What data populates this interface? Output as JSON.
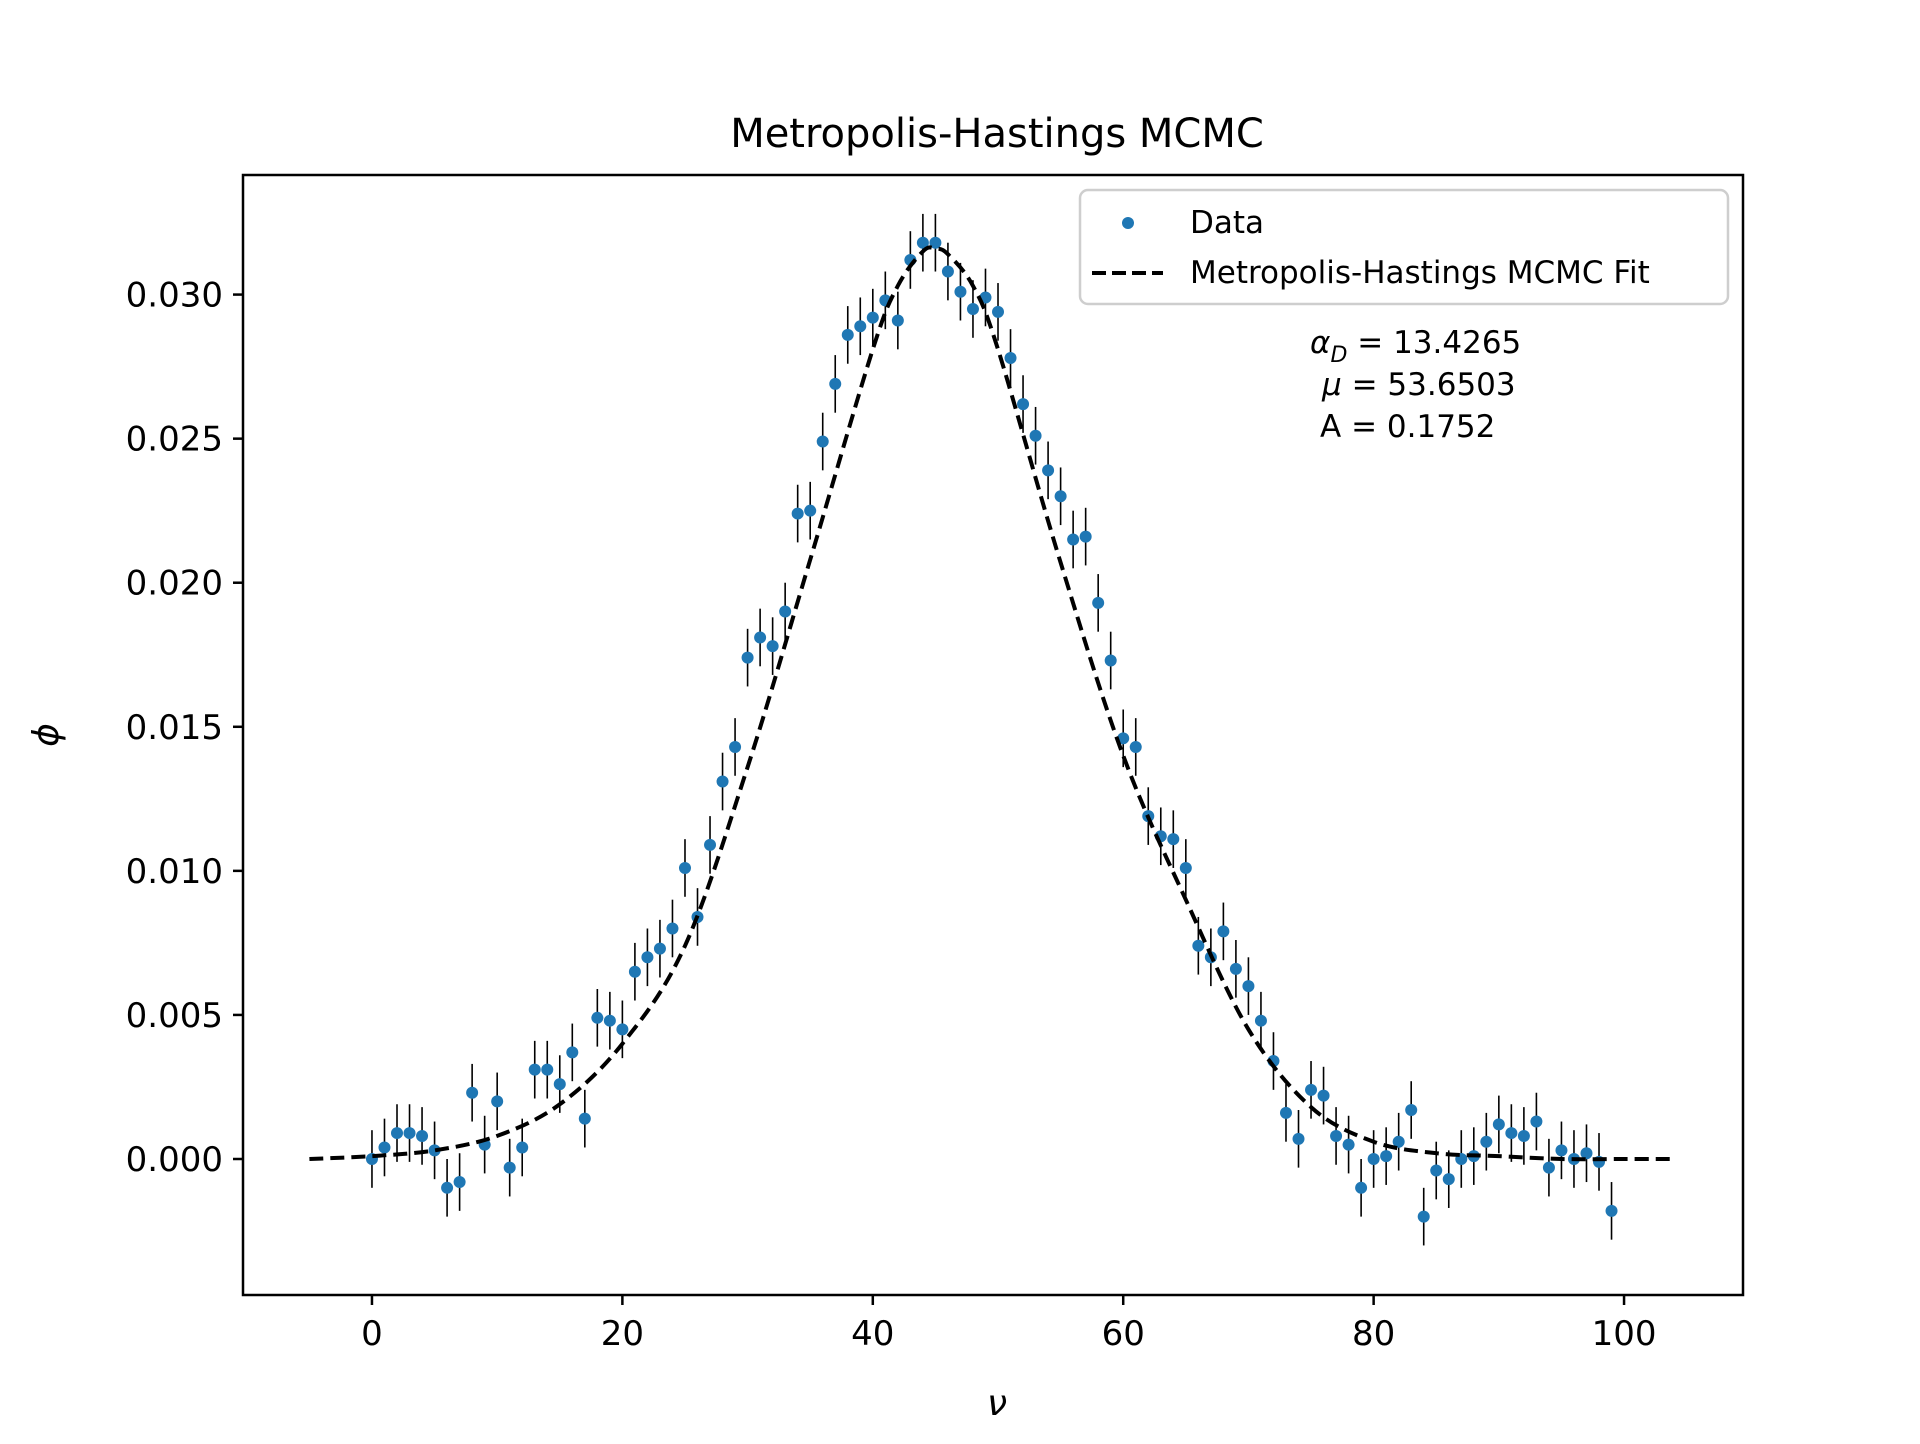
{
  "chart_data": {
    "type": "scatter",
    "title": "Metropolis-Hastings MCMC",
    "xlabel": "ν",
    "ylabel": "ϕ",
    "xlim": [
      -10.3,
      109.5
    ],
    "ylim": [
      -0.00472,
      0.03415
    ],
    "x_ticks": [
      "0",
      "20",
      "40",
      "60",
      "80",
      "100"
    ],
    "x_tick_values": [
      0,
      20,
      40,
      60,
      80,
      100
    ],
    "y_ticks": [
      "0.000",
      "0.005",
      "0.010",
      "0.015",
      "0.020",
      "0.025",
      "0.030"
    ],
    "y_tick_values": [
      0.0,
      0.005,
      0.01,
      0.015,
      0.02,
      0.025,
      0.03
    ],
    "grid": false,
    "legend_position": "upper right",
    "series": [
      {
        "name": "Data",
        "kind": "errorbar-scatter",
        "color": "#1f77b4",
        "error_color": "#000000",
        "y_error": 0.001,
        "x": [
          0,
          1,
          2,
          3,
          4,
          5,
          6,
          7,
          8,
          9,
          10,
          11,
          12,
          13,
          14,
          15,
          16,
          17,
          18,
          19,
          20,
          21,
          22,
          23,
          24,
          25,
          26,
          27,
          28,
          29,
          30,
          31,
          32,
          33,
          34,
          35,
          36,
          37,
          38,
          39,
          40,
          41,
          42,
          43,
          44,
          45,
          46,
          47,
          48,
          49,
          50,
          51,
          52,
          53,
          54,
          55,
          56,
          57,
          58,
          59,
          60,
          61,
          62,
          63,
          64,
          65,
          66,
          67,
          68,
          69,
          70,
          71,
          72,
          73,
          74,
          75,
          76,
          77,
          78,
          79,
          80,
          81,
          82,
          83,
          84,
          85,
          86,
          87,
          88,
          89,
          90,
          91,
          92,
          93,
          94,
          95,
          96,
          97,
          98,
          99
        ],
        "y": [
          0.0,
          0.0004,
          0.0009,
          0.0009,
          0.0008,
          0.0003,
          -0.001,
          -0.0008,
          0.0023,
          0.0005,
          0.002,
          -0.0003,
          0.0004,
          0.0031,
          0.0031,
          0.0026,
          0.0037,
          0.0014,
          0.0049,
          0.0048,
          0.0045,
          0.0065,
          0.007,
          0.0073,
          0.008,
          0.0101,
          0.0084,
          0.0109,
          0.0131,
          0.0143,
          0.0174,
          0.0181,
          0.0178,
          0.019,
          0.0224,
          0.0225,
          0.0249,
          0.0269,
          0.0286,
          0.0289,
          0.0292,
          0.0298,
          0.0291,
          0.0312,
          0.0318,
          0.0318,
          0.0308,
          0.0301,
          0.0295,
          0.0299,
          0.0294,
          0.0278,
          0.0262,
          0.0251,
          0.0239,
          0.023,
          0.0215,
          0.0216,
          0.0193,
          0.0173,
          0.0146,
          0.0143,
          0.0119,
          0.0112,
          0.0111,
          0.0101,
          0.0074,
          0.007,
          0.0079,
          0.0066,
          0.006,
          0.0048,
          0.0034,
          0.0016,
          0.0007,
          0.0024,
          0.0022,
          0.0008,
          0.0005,
          -0.001,
          0.0,
          0.0001,
          0.0006,
          0.0017,
          -0.002,
          -0.0004,
          -0.0007,
          0.0,
          0.0001,
          0.0006,
          0.0012,
          0.0009,
          0.0008,
          0.0013,
          -0.0003,
          0.0003,
          0.0,
          0.0002,
          -0.0001,
          -0.0018
        ]
      },
      {
        "name": "Metropolis-Hastings MCMC Fit",
        "kind": "line",
        "color": "#000000",
        "dash": "dashed",
        "x": [
          -5,
          0,
          5,
          10,
          15,
          20,
          25,
          30,
          35,
          40,
          42,
          44,
          45,
          46,
          48,
          50,
          55,
          60,
          65,
          70,
          75,
          80,
          85,
          90,
          95,
          100,
          104
        ],
        "y": [
          0.0,
          0.0001,
          0.0003,
          0.0008,
          0.0019,
          0.004,
          0.0074,
          0.0136,
          0.0208,
          0.0281,
          0.0303,
          0.0315,
          0.0316,
          0.0314,
          0.0303,
          0.0281,
          0.0207,
          0.014,
          0.009,
          0.0045,
          0.0018,
          0.0006,
          0.0002,
          0.0001,
          0.0,
          0.0,
          0.0
        ]
      }
    ],
    "annotations": [
      {
        "label": "αD",
        "value": "= 13.4265"
      },
      {
        "label": "μ",
        "value": "= 53.6503"
      },
      {
        "label": "A",
        "value": "= 0.1752"
      }
    ]
  }
}
